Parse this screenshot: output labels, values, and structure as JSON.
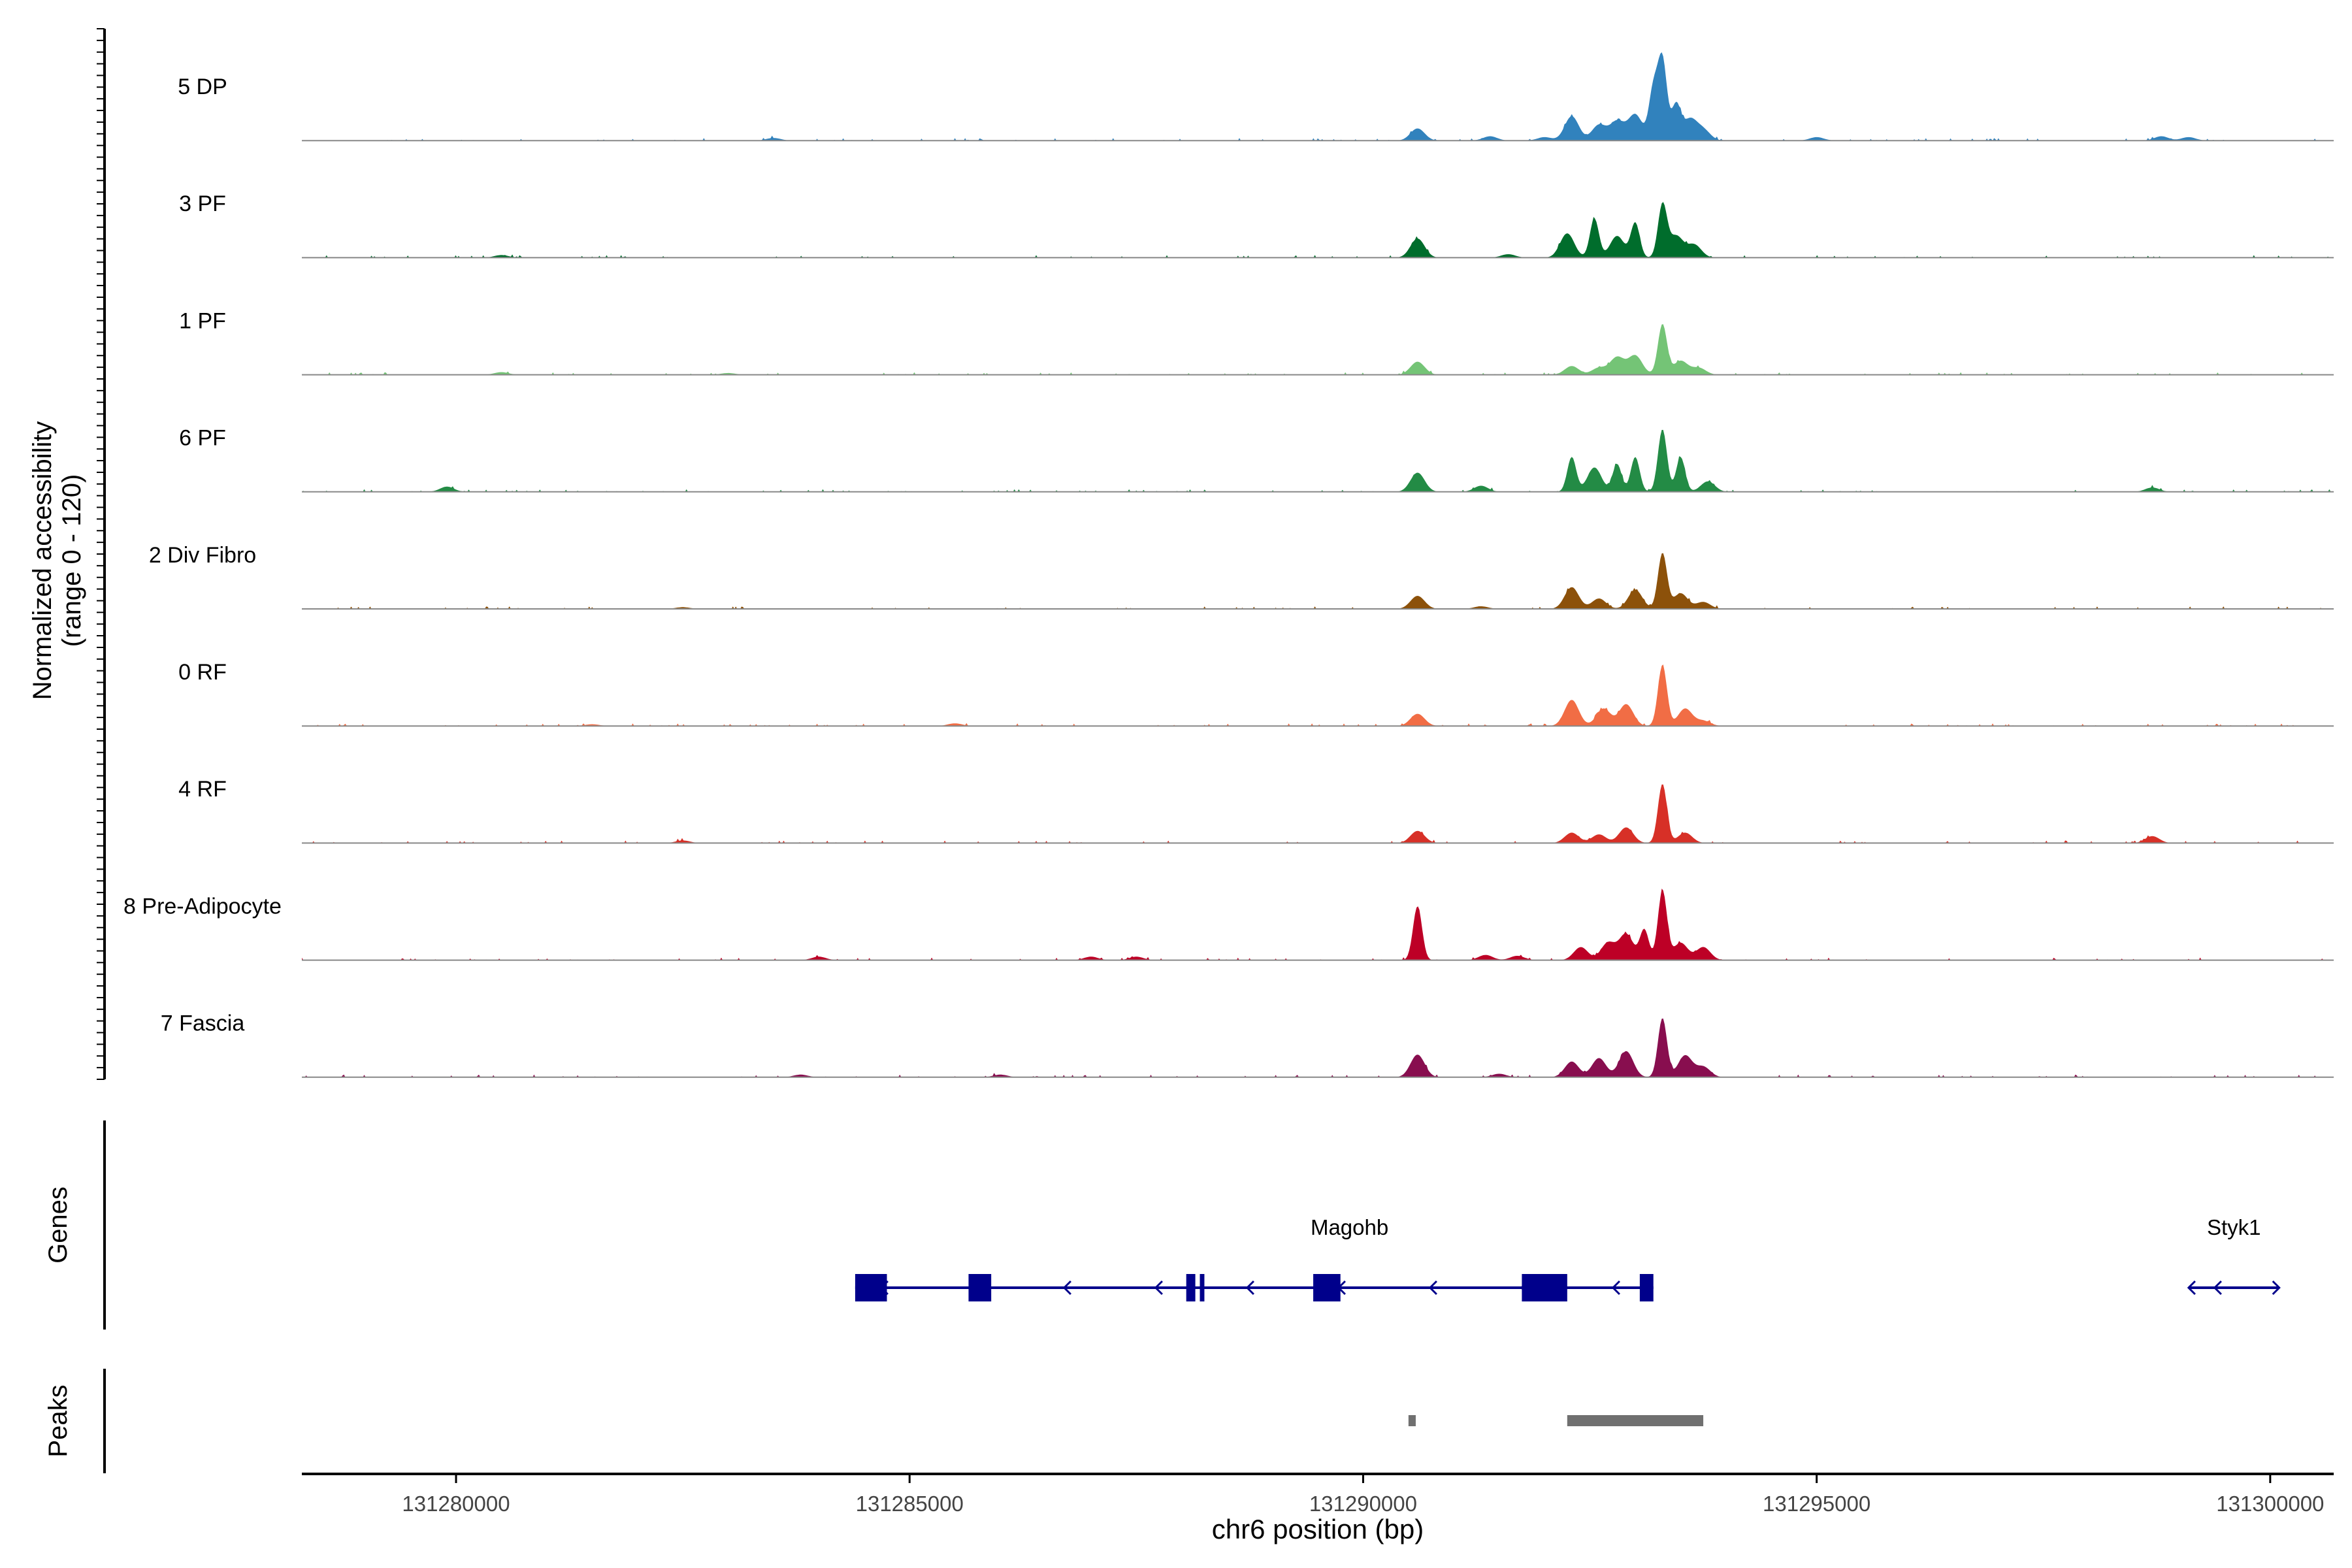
{
  "chart_data": {
    "type": "area",
    "y_axis_title": "Normalized accessibility",
    "y_axis_subtitle": "(range 0 - 120)",
    "ylim": [
      0,
      120
    ],
    "x_axis_title": "chr6 position (bp)",
    "xlim": [
      131278300,
      131300700
    ],
    "x_ticks": [
      131280000,
      131285000,
      131290000,
      131295000,
      131300000
    ],
    "x_tick_labels": [
      "131280000",
      "131285000",
      "131290000",
      "131295000",
      "131300000"
    ],
    "series": [
      {
        "name": "5 DP",
        "color": "#3182bd",
        "peaks": [
          [
            131290600,
            14
          ],
          [
            131292300,
            28
          ],
          [
            131292600,
            18
          ],
          [
            131292800,
            22
          ],
          [
            131293000,
            30
          ],
          [
            131293200,
            58
          ],
          [
            131293300,
            92
          ],
          [
            131293450,
            40
          ],
          [
            131293600,
            24
          ],
          [
            131293750,
            12
          ],
          [
            131291400,
            5
          ],
          [
            131292000,
            4
          ],
          [
            131295000,
            4
          ],
          [
            131298800,
            5
          ],
          [
            131299100,
            4
          ],
          [
            131283500,
            3
          ]
        ]
      },
      {
        "name": "3 PF",
        "color": "#006d2c",
        "peaks": [
          [
            131290600,
            22
          ],
          [
            131292250,
            28
          ],
          [
            131292550,
            45
          ],
          [
            131292800,
            25
          ],
          [
            131293000,
            40
          ],
          [
            131293300,
            60
          ],
          [
            131293450,
            25
          ],
          [
            131293650,
            15
          ],
          [
            131291600,
            4
          ],
          [
            131280500,
            3
          ]
        ]
      },
      {
        "name": "1 PF",
        "color": "#74c476",
        "peaks": [
          [
            131290600,
            15
          ],
          [
            131292300,
            10
          ],
          [
            131292600,
            8
          ],
          [
            131292800,
            20
          ],
          [
            131293000,
            22
          ],
          [
            131293300,
            58
          ],
          [
            131293500,
            16
          ],
          [
            131293700,
            8
          ],
          [
            131280500,
            3
          ],
          [
            131283000,
            2
          ]
        ]
      },
      {
        "name": "6 PF",
        "color": "#238b45",
        "peaks": [
          [
            131290600,
            22
          ],
          [
            131292300,
            40
          ],
          [
            131292550,
            28
          ],
          [
            131292800,
            32
          ],
          [
            131293000,
            40
          ],
          [
            131293300,
            72
          ],
          [
            131293500,
            40
          ],
          [
            131293800,
            12
          ],
          [
            131291300,
            7
          ],
          [
            131279900,
            6
          ],
          [
            131298700,
            5
          ]
        ]
      },
      {
        "name": "2 Div Fibro",
        "color": "#8c510a",
        "peaks": [
          [
            131290600,
            15
          ],
          [
            131292300,
            25
          ],
          [
            131292600,
            12
          ],
          [
            131293000,
            22
          ],
          [
            131293300,
            64
          ],
          [
            131293500,
            18
          ],
          [
            131293750,
            8
          ],
          [
            131291300,
            3
          ],
          [
            131282500,
            2
          ]
        ]
      },
      {
        "name": "0 RF",
        "color": "#f16d45",
        "peaks": [
          [
            131290600,
            14
          ],
          [
            131292300,
            30
          ],
          [
            131292650,
            20
          ],
          [
            131292900,
            25
          ],
          [
            131293300,
            70
          ],
          [
            131293550,
            20
          ],
          [
            131293750,
            6
          ],
          [
            131285500,
            3
          ],
          [
            131281500,
            2
          ]
        ]
      },
      {
        "name": "4 RF",
        "color": "#d73027",
        "peaks": [
          [
            131290600,
            14
          ],
          [
            131292300,
            12
          ],
          [
            131292600,
            10
          ],
          [
            131292900,
            18
          ],
          [
            131293300,
            68
          ],
          [
            131293550,
            12
          ],
          [
            131298700,
            8
          ],
          [
            131282500,
            3
          ]
        ]
      },
      {
        "name": "8 Pre-Adipocyte",
        "color": "#bd0026",
        "peaks": [
          [
            131290600,
            62
          ],
          [
            131292400,
            15
          ],
          [
            131292700,
            20
          ],
          [
            131292900,
            30
          ],
          [
            131293100,
            35
          ],
          [
            131293300,
            80
          ],
          [
            131293500,
            20
          ],
          [
            131293750,
            15
          ],
          [
            131291350,
            6
          ],
          [
            131291700,
            5
          ],
          [
            131284000,
            4
          ],
          [
            131287000,
            4
          ],
          [
            131287500,
            4
          ]
        ]
      },
      {
        "name": "7 Fascia",
        "color": "#880e4f",
        "peaks": [
          [
            131290600,
            26
          ],
          [
            131292300,
            18
          ],
          [
            131292600,
            22
          ],
          [
            131292900,
            30
          ],
          [
            131293300,
            68
          ],
          [
            131293550,
            25
          ],
          [
            131293750,
            12
          ],
          [
            131291500,
            4
          ],
          [
            131286000,
            3
          ],
          [
            131283800,
            3
          ]
        ]
      }
    ],
    "genes_track_label": "Genes",
    "genes": [
      {
        "name": "Magohb",
        "strand": "-",
        "start": 131284400,
        "end": 131293200,
        "label_pos": 131289850,
        "exons": [
          [
            131284400,
            131284750
          ],
          [
            131285650,
            131285900
          ],
          [
            131288050,
            131288150
          ],
          [
            131288200,
            131288250
          ],
          [
            131289450,
            131289750
          ],
          [
            131291750,
            131292250
          ],
          [
            131293050,
            131293200
          ]
        ]
      },
      {
        "name": "Styk1",
        "strand": "-",
        "start": 131299100,
        "end": 131300100,
        "label_pos": 131299600,
        "exons": []
      }
    ],
    "peaks_track_label": "Peaks",
    "peak_regions": [
      [
        131290500,
        131290580
      ],
      [
        131292250,
        131293750
      ]
    ]
  }
}
